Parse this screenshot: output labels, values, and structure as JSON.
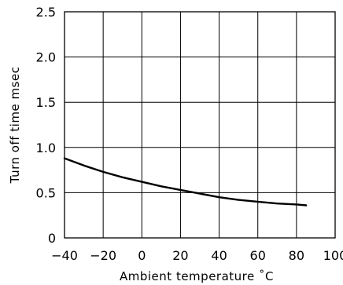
{
  "chart_data": {
    "type": "line",
    "title": "",
    "xlabel": "Ambient temperature ˚C",
    "ylabel": "Turn off time msec",
    "xlim": [
      -40,
      100
    ],
    "ylim": [
      0,
      2.5
    ],
    "x_ticks": [
      -40,
      -20,
      0,
      20,
      40,
      60,
      80,
      100
    ],
    "x_tick_labels": [
      "−40",
      "−20",
      "0",
      "20",
      "40",
      "60",
      "80",
      "100"
    ],
    "y_ticks": [
      0,
      0.5,
      1.0,
      1.5,
      2.0,
      2.5
    ],
    "y_tick_labels": [
      "0",
      "0.5",
      "1.0",
      "1.5",
      "2.0",
      "2.5"
    ],
    "grid": true,
    "series": [
      {
        "x": [
          -40,
          -30,
          -20,
          -10,
          0,
          10,
          20,
          30,
          40,
          50,
          60,
          70,
          80,
          85
        ],
        "y": [
          0.88,
          0.8,
          0.73,
          0.67,
          0.62,
          0.57,
          0.53,
          0.49,
          0.45,
          0.42,
          0.4,
          0.38,
          0.37,
          0.36
        ]
      }
    ],
    "colors": {
      "line": "#000000",
      "grid": "#000000",
      "background": "#ffffff"
    }
  }
}
